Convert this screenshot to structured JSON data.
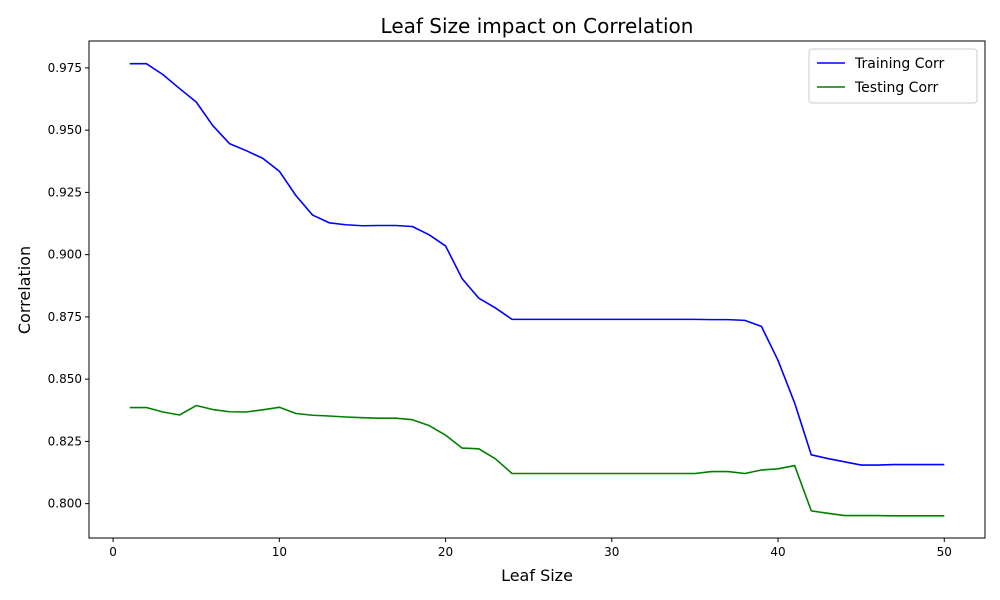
{
  "chart_data": {
    "type": "line",
    "title": "Leaf Size impact on Correlation",
    "xlabel": "Leaf Size",
    "ylabel": "Correlation",
    "xlim": [
      -1.45,
      52.45
    ],
    "ylim": [
      0.7862,
      0.9858
    ],
    "xticks": [
      0,
      10,
      20,
      30,
      40,
      50
    ],
    "yticks": [
      0.8,
      0.825,
      0.85,
      0.875,
      0.9,
      0.925,
      0.95,
      0.975
    ],
    "xtick_labels": [
      "0",
      "10",
      "20",
      "30",
      "40",
      "50"
    ],
    "ytick_labels": [
      "0.800",
      "0.825",
      "0.850",
      "0.875",
      "0.900",
      "0.925",
      "0.950",
      "0.975"
    ],
    "grid": false,
    "legend_position": "top-right",
    "x": [
      1,
      2,
      3,
      4,
      5,
      6,
      7,
      8,
      9,
      10,
      11,
      12,
      13,
      14,
      15,
      16,
      17,
      18,
      19,
      20,
      21,
      22,
      23,
      24,
      25,
      26,
      27,
      28,
      29,
      30,
      31,
      32,
      33,
      34,
      35,
      36,
      37,
      38,
      39,
      40,
      41,
      42,
      43,
      44,
      45,
      46,
      47,
      48,
      49,
      50
    ],
    "series": [
      {
        "name": "Training Corr",
        "color": "#0000ff",
        "values": [
          0.9767,
          0.9767,
          0.9723,
          0.9667,
          0.9613,
          0.9518,
          0.9446,
          0.9418,
          0.9387,
          0.9335,
          0.9237,
          0.9159,
          0.9128,
          0.912,
          0.9116,
          0.9117,
          0.9117,
          0.9113,
          0.908,
          0.9035,
          0.8903,
          0.8825,
          0.8786,
          0.874,
          0.874,
          0.874,
          0.874,
          0.874,
          0.874,
          0.874,
          0.874,
          0.874,
          0.874,
          0.874,
          0.874,
          0.8739,
          0.8739,
          0.8736,
          0.8712,
          0.8575,
          0.8404,
          0.8196,
          0.8181,
          0.8168,
          0.8155,
          0.8155,
          0.8157,
          0.8157,
          0.8157,
          0.8157
        ]
      },
      {
        "name": "Testing Corr",
        "color": "#008000",
        "values": [
          0.8386,
          0.8386,
          0.8368,
          0.8356,
          0.8394,
          0.8378,
          0.8369,
          0.8368,
          0.8377,
          0.8387,
          0.8362,
          0.8355,
          0.8352,
          0.8348,
          0.8345,
          0.8343,
          0.8343,
          0.8337,
          0.8314,
          0.8275,
          0.8223,
          0.822,
          0.818,
          0.8121,
          0.8121,
          0.8121,
          0.8121,
          0.8121,
          0.8121,
          0.8121,
          0.8121,
          0.8121,
          0.8121,
          0.8121,
          0.8121,
          0.8129,
          0.8129,
          0.8121,
          0.8135,
          0.814,
          0.8153,
          0.7971,
          0.7961,
          0.7952,
          0.7952,
          0.7952,
          0.7951,
          0.7951,
          0.7951,
          0.7951
        ]
      }
    ]
  }
}
